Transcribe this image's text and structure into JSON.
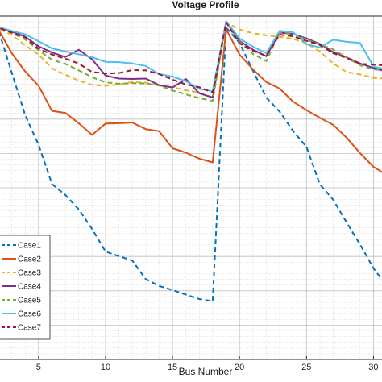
{
  "chart_data": {
    "type": "line",
    "title": "Voltage Profile",
    "xlabel": "Bus Number",
    "ylabel": "",
    "x_ticks": [
      5,
      10,
      15,
      20,
      25,
      30
    ],
    "x_tick_labels": [
      "5",
      "10",
      "15",
      "20",
      "25",
      "30"
    ],
    "xlim": [
      2,
      31
    ],
    "ylim": [
      0.0,
      1.0
    ],
    "grid": true,
    "grid_minor": true,
    "legend_position": "bottom-left",
    "x": [
      1,
      2,
      3,
      4,
      5,
      6,
      7,
      8,
      9,
      10,
      11,
      12,
      13,
      14,
      15,
      16,
      17,
      18,
      19,
      20,
      21,
      22,
      23,
      24,
      25,
      26,
      27,
      28,
      29,
      30,
      31,
      32,
      33
    ],
    "series": [
      {
        "name": "Case1",
        "color": "#0072BD",
        "dash": "dashed",
        "values": [
          0.972,
          0.96,
          0.835,
          0.712,
          0.625,
          0.511,
          0.479,
          0.437,
          0.38,
          0.314,
          0.301,
          0.288,
          0.234,
          0.214,
          0.202,
          0.189,
          0.176,
          0.17,
          0.967,
          0.922,
          0.841,
          0.763,
          0.722,
          0.665,
          0.619,
          0.51,
          0.465,
          0.399,
          0.335,
          0.266,
          0.214,
          0.19,
          0.18
        ]
      },
      {
        "name": "Case2",
        "color": "#D95319",
        "dash": "solid",
        "values": [
          0.975,
          0.961,
          0.892,
          0.839,
          0.797,
          0.724,
          0.718,
          0.688,
          0.654,
          0.687,
          0.688,
          0.69,
          0.671,
          0.665,
          0.615,
          0.602,
          0.585,
          0.574,
          0.962,
          0.888,
          0.845,
          0.808,
          0.789,
          0.751,
          0.726,
          0.704,
          0.683,
          0.646,
          0.601,
          0.561,
          0.537,
          0.52,
          0.51
        ]
      },
      {
        "name": "Case3",
        "color": "#EDB120",
        "dash": "dashed",
        "values": [
          0.976,
          0.964,
          0.945,
          0.915,
          0.888,
          0.848,
          0.829,
          0.812,
          0.8,
          0.797,
          0.801,
          0.808,
          0.806,
          0.798,
          0.793,
          0.784,
          0.777,
          0.763,
          0.982,
          0.961,
          0.95,
          0.944,
          0.94,
          0.934,
          0.921,
          0.897,
          0.862,
          0.837,
          0.83,
          0.82,
          0.818,
          0.815,
          0.812
        ]
      },
      {
        "name": "Case4",
        "color": "#7E2F8E",
        "dash": "solid",
        "values": [
          0.977,
          0.966,
          0.955,
          0.94,
          0.912,
          0.894,
          0.881,
          0.902,
          0.874,
          0.827,
          0.818,
          0.817,
          0.818,
          0.799,
          0.792,
          0.817,
          0.775,
          0.763,
          0.984,
          0.928,
          0.902,
          0.883,
          0.952,
          0.948,
          0.935,
          0.919,
          0.895,
          0.88,
          0.862,
          0.849,
          0.838,
          0.83,
          0.82
        ]
      },
      {
        "name": "Case5",
        "color": "#77AC30",
        "dash": "dashed",
        "values": [
          0.977,
          0.967,
          0.951,
          0.932,
          0.901,
          0.873,
          0.861,
          0.842,
          0.822,
          0.807,
          0.803,
          0.805,
          0.804,
          0.798,
          0.783,
          0.772,
          0.761,
          0.753,
          0.982,
          0.926,
          0.89,
          0.869,
          0.954,
          0.949,
          0.931,
          0.918,
          0.903,
          0.879,
          0.857,
          0.845,
          0.841,
          0.835,
          0.83
        ]
      },
      {
        "name": "Case6",
        "color": "#4DBEEE",
        "dash": "solid",
        "values": [
          0.978,
          0.968,
          0.957,
          0.947,
          0.927,
          0.906,
          0.897,
          0.889,
          0.88,
          0.867,
          0.866,
          0.862,
          0.855,
          0.831,
          0.824,
          0.81,
          0.788,
          0.781,
          0.985,
          0.935,
          0.911,
          0.892,
          0.957,
          0.953,
          0.918,
          0.909,
          0.931,
          0.925,
          0.922,
          0.854,
          0.843,
          0.838,
          0.83
        ]
      },
      {
        "name": "Case7",
        "color": "#A2142F",
        "dash": "dashed",
        "values": [
          0.977,
          0.966,
          0.952,
          0.938,
          0.905,
          0.888,
          0.876,
          0.862,
          0.837,
          0.833,
          0.834,
          0.843,
          0.842,
          0.831,
          0.815,
          0.801,
          0.793,
          0.777,
          0.982,
          0.921,
          0.899,
          0.884,
          0.946,
          0.941,
          0.928,
          0.916,
          0.892,
          0.878,
          0.861,
          0.859,
          0.856,
          0.853,
          0.85
        ]
      }
    ]
  }
}
